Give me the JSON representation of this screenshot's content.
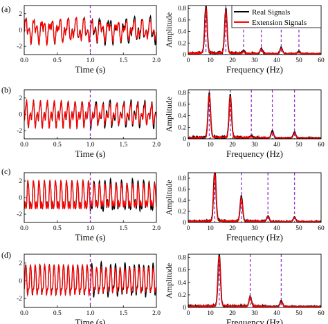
{
  "legend": {
    "real": "Real Signals",
    "extension": "Extension Signals",
    "placement": "top-right of panel (a) spectrum"
  },
  "colors": {
    "real": "#000000",
    "extension": "#ff0000",
    "marker": "#9933cc"
  },
  "chart_data": [
    {
      "id": "a-time",
      "panel_label": "(a)",
      "type": "line",
      "xlabel": "Time (s)",
      "ylabel": "",
      "xlim": [
        0,
        2
      ],
      "ylim": [
        -3,
        3
      ],
      "xticks": [
        "0.0",
        "0.5",
        "1.0",
        "1.5",
        "2.0"
      ],
      "yticks": [
        "2",
        "0",
        "-2"
      ],
      "marker_x": 1.0,
      "signal": {
        "freqs": [
          8,
          17,
          25,
          33,
          42,
          50
        ],
        "amps": [
          0.9,
          0.75,
          0.15,
          0.12,
          0.12,
          0.1
        ],
        "dev": 0.35
      },
      "series": [
        {
          "name": "Real Signals",
          "x_range": [
            0,
            2
          ]
        },
        {
          "name": "Extension Signals",
          "x_range": [
            0,
            2
          ]
        }
      ]
    },
    {
      "id": "a-spec",
      "type": "line",
      "xlabel": "Frequency (Hz)",
      "ylabel": "Amplitude",
      "xlim": [
        0,
        60
      ],
      "ylim": [
        0,
        0.85
      ],
      "xticks": [
        "0",
        "10",
        "20",
        "30",
        "40",
        "50",
        "60"
      ],
      "yticks": [
        "0",
        "0.2",
        "0.4",
        "0.6",
        "0.8"
      ],
      "markers_x": [
        8,
        17,
        25,
        33,
        42,
        50
      ],
      "series": [
        {
          "name": "Real Signals",
          "peaks": [
            [
              8,
              0.8
            ],
            [
              17,
              0.75
            ],
            [
              25,
              0.04
            ],
            [
              33,
              0.08
            ],
            [
              42,
              0.1
            ],
            [
              50,
              0.04
            ]
          ]
        },
        {
          "name": "Extension Signals",
          "peaks": [
            [
              8,
              0.78
            ],
            [
              17,
              0.72
            ],
            [
              25,
              0.03
            ],
            [
              33,
              0.07
            ],
            [
              42,
              0.09
            ],
            [
              50,
              0.03
            ]
          ]
        }
      ]
    },
    {
      "id": "b-time",
      "panel_label": "(b)",
      "type": "line",
      "xlabel": "Time (s)",
      "ylabel": "",
      "xlim": [
        0,
        2
      ],
      "ylim": [
        -3,
        3
      ],
      "xticks": [
        "0.0",
        "0.5",
        "1.0",
        "1.5",
        "2.0"
      ],
      "yticks": [
        "2",
        "0",
        "-2"
      ],
      "marker_x": 1.0,
      "signal": {
        "freqs": [
          9.5,
          19,
          28.5,
          38,
          48
        ],
        "amps": [
          0.9,
          0.9,
          0.12,
          0.15,
          0.12
        ],
        "dev": 0.3
      },
      "series": [
        {
          "name": "Real Signals",
          "x_range": [
            0,
            2
          ]
        },
        {
          "name": "Extension Signals",
          "x_range": [
            0,
            2
          ]
        }
      ]
    },
    {
      "id": "b-spec",
      "type": "line",
      "xlabel": "Frequency (Hz)",
      "ylabel": "Amplitude",
      "xlim": [
        0,
        60
      ],
      "ylim": [
        0,
        0.85
      ],
      "xticks": [
        "0",
        "10",
        "20",
        "30",
        "40",
        "50",
        "60"
      ],
      "yticks": [
        "0",
        "0.2",
        "0.4",
        "0.6",
        "0.8"
      ],
      "markers_x": [
        9.5,
        19,
        28.5,
        38,
        48
      ],
      "series": [
        {
          "name": "Real Signals",
          "peaks": [
            [
              9.5,
              0.75
            ],
            [
              19,
              0.72
            ],
            [
              28.5,
              0.03
            ],
            [
              38,
              0.12
            ],
            [
              48,
              0.1
            ]
          ]
        },
        {
          "name": "Extension Signals",
          "peaks": [
            [
              9.5,
              0.73
            ],
            [
              19,
              0.7
            ],
            [
              28.5,
              0.02
            ],
            [
              38,
              0.1
            ],
            [
              48,
              0.08
            ]
          ]
        }
      ]
    },
    {
      "id": "c-time",
      "panel_label": "(c)",
      "type": "line",
      "xlabel": "Time (s)",
      "ylabel": "",
      "xlim": [
        0,
        2
      ],
      "ylim": [
        -3,
        3
      ],
      "xticks": [
        "0.0",
        "0.5",
        "1.0",
        "1.5",
        "2.0"
      ],
      "yticks": [
        "2",
        "0",
        "-2"
      ],
      "marker_x": 1.0,
      "signal": {
        "freqs": [
          12,
          24,
          36,
          48
        ],
        "amps": [
          1.5,
          0.7,
          0.2,
          0.15
        ],
        "dev": 0.35
      },
      "series": [
        {
          "name": "Real Signals",
          "x_range": [
            0,
            2
          ]
        },
        {
          "name": "Extension Signals",
          "x_range": [
            0,
            2
          ]
        }
      ]
    },
    {
      "id": "c-spec",
      "type": "line",
      "xlabel": "Frequency (Hz)",
      "ylabel": "Amplitude",
      "xlim": [
        0,
        60
      ],
      "ylim": [
        0,
        0.9
      ],
      "xticks": [
        "0",
        "10",
        "20",
        "30",
        "40",
        "50",
        "60"
      ],
      "yticks": [
        "0",
        "0.2",
        "0.4",
        "0.6",
        "0.8"
      ],
      "markers_x": [
        12,
        24,
        36,
        48
      ],
      "series": [
        {
          "name": "Real Signals",
          "peaks": [
            [
              12,
              0.9
            ],
            [
              24,
              0.45
            ],
            [
              36,
              0.1
            ],
            [
              48,
              0.08
            ]
          ]
        },
        {
          "name": "Extension Signals",
          "peaks": [
            [
              12,
              0.85
            ],
            [
              24,
              0.42
            ],
            [
              36,
              0.09
            ],
            [
              48,
              0.07
            ]
          ]
        }
      ]
    },
    {
      "id": "d-time",
      "panel_label": "(d)",
      "type": "line",
      "xlabel": "Time (s)",
      "ylabel": "",
      "xlim": [
        0,
        2
      ],
      "ylim": [
        -3,
        3
      ],
      "xticks": [
        "0.0",
        "0.5",
        "1.0",
        "1.5",
        "2.0"
      ],
      "yticks": [
        "2",
        "0",
        "-2"
      ],
      "marker_x": 1.0,
      "signal": {
        "freqs": [
          14,
          28,
          42
        ],
        "amps": [
          1.6,
          0.35,
          0.2
        ],
        "dev": 0.4
      },
      "series": [
        {
          "name": "Real Signals",
          "x_range": [
            0,
            2
          ]
        },
        {
          "name": "Extension Signals",
          "x_range": [
            0,
            2
          ]
        }
      ]
    },
    {
      "id": "d-spec",
      "type": "line",
      "xlabel": "Frequency (Hz)",
      "ylabel": "Amplitude",
      "xlim": [
        0,
        60
      ],
      "ylim": [
        0,
        0.85
      ],
      "xticks": [
        "0",
        "10",
        "20",
        "30",
        "40",
        "50",
        "60"
      ],
      "yticks": [
        "0",
        "0.2",
        "0.4",
        "0.6",
        "0.8"
      ],
      "markers_x": [
        14,
        28,
        42
      ],
      "series": [
        {
          "name": "Real Signals",
          "peaks": [
            [
              14,
              0.8
            ],
            [
              28,
              0.15
            ],
            [
              42,
              0.09
            ]
          ]
        },
        {
          "name": "Extension Signals",
          "peaks": [
            [
              14,
              0.78
            ],
            [
              28,
              0.14
            ],
            [
              42,
              0.07
            ]
          ]
        }
      ]
    }
  ]
}
